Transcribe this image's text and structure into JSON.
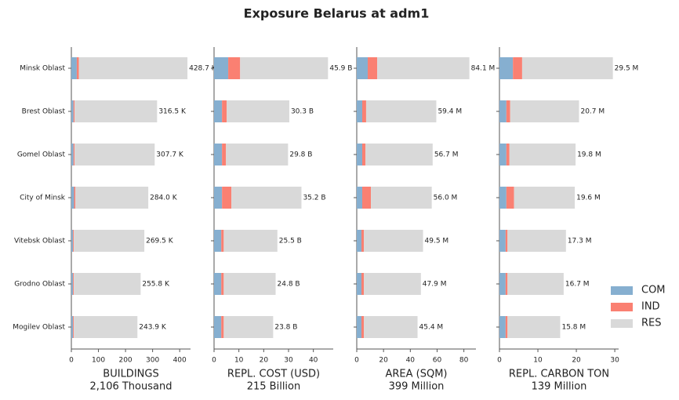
{
  "title": "Exposure Belarus at adm1",
  "categories": [
    "Minsk Oblast",
    "Brest Oblast",
    "Gomel Oblast",
    "City of Minsk",
    "Vitebsk Oblast",
    "Grodno Oblast",
    "Mogilev Oblast"
  ],
  "legend": [
    {
      "name": "COM",
      "color": "#86afd0"
    },
    {
      "name": "IND",
      "color": "#fa8072"
    },
    {
      "name": "RES",
      "color": "#d9d9d9"
    }
  ],
  "chart_data": [
    {
      "type": "bar",
      "xlabel": "BUILDINGS",
      "subtitle": "2,106 Thousand",
      "series": [
        {
          "values": [
            20,
            8,
            8,
            10,
            6,
            6,
            6
          ]
        },
        {
          "values": [
            8,
            4,
            4,
            5,
            3,
            3,
            3
          ]
        },
        {
          "values": [
            400.7,
            304.5,
            295.7,
            269.0,
            260.5,
            246.8,
            234.9
          ]
        }
      ],
      "totals": [
        428.7,
        316.5,
        307.7,
        284.0,
        269.5,
        255.8,
        243.9
      ],
      "total_labels": [
        "428.7 K",
        "316.5 K",
        "307.7 K",
        "284.0 K",
        "269.5 K",
        "255.8 K",
        "243.9 K"
      ],
      "xlim": [
        0,
        440
      ],
      "xticks": [
        0,
        100,
        200,
        300,
        400
      ]
    },
    {
      "type": "bar",
      "xlabel": "REPL. COST (USD)",
      "subtitle": "215 Billion",
      "series": [
        {
          "values": [
            5.7,
            3.2,
            3.2,
            3.2,
            2.9,
            2.9,
            2.9
          ]
        },
        {
          "values": [
            4.8,
            1.9,
            1.6,
            3.8,
            1.0,
            1.0,
            1.0
          ]
        },
        {
          "values": [
            35.4,
            25.2,
            25.0,
            28.2,
            21.6,
            20.9,
            19.9
          ]
        }
      ],
      "totals": [
        45.9,
        30.3,
        29.8,
        35.2,
        25.5,
        24.8,
        23.8
      ],
      "total_labels": [
        "45.9 B",
        "30.3 B",
        "29.8 B",
        "35.2 B",
        "25.5 B",
        "24.8 B",
        "23.8 B"
      ],
      "xlim": [
        0,
        48
      ],
      "xticks": [
        0,
        10,
        20,
        30,
        40
      ]
    },
    {
      "type": "bar",
      "xlabel": "AREA (SQM)",
      "subtitle": "399 Million",
      "series": [
        {
          "values": [
            8.2,
            4.1,
            4.1,
            4.1,
            3.5,
            3.5,
            3.5
          ]
        },
        {
          "values": [
            7.1,
            2.9,
            2.4,
            6.5,
            1.8,
            1.8,
            1.8
          ]
        },
        {
          "values": [
            68.8,
            52.4,
            50.2,
            45.4,
            44.2,
            42.6,
            40.1
          ]
        }
      ],
      "totals": [
        84.1,
        59.4,
        56.7,
        56.0,
        49.5,
        47.9,
        45.4
      ],
      "total_labels": [
        "84.1 M",
        "59.4 M",
        "56.7 M",
        "56.0 M",
        "49.5 M",
        "47.9 M",
        "45.4 M"
      ],
      "xlim": [
        0,
        89
      ],
      "xticks": [
        0,
        20,
        40,
        60,
        80
      ]
    },
    {
      "type": "bar",
      "xlabel": "REPL. CARBON TON",
      "subtitle": "139 Million",
      "series": [
        {
          "values": [
            3.5,
            1.8,
            1.8,
            1.8,
            1.6,
            1.6,
            1.6
          ]
        },
        {
          "values": [
            2.4,
            1.0,
            0.8,
            2.0,
            0.5,
            0.5,
            0.5
          ]
        },
        {
          "values": [
            23.6,
            17.9,
            17.2,
            15.8,
            15.2,
            14.6,
            13.7
          ]
        }
      ],
      "totals": [
        29.5,
        20.7,
        19.8,
        19.6,
        17.3,
        16.7,
        15.8
      ],
      "total_labels": [
        "29.5 M",
        "20.7 M",
        "19.8 M",
        "19.6 M",
        "17.3 M",
        "16.7 M",
        "15.8 M"
      ],
      "xlim": [
        0,
        31
      ],
      "xticks": [
        0,
        10,
        20,
        30
      ]
    }
  ]
}
